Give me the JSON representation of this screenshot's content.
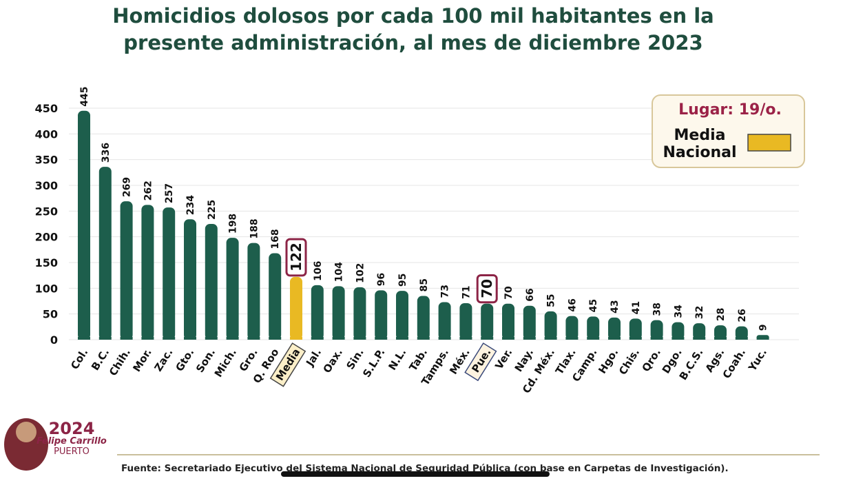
{
  "chart_data": {
    "type": "bar",
    "title": "Homicidios dolosos por cada 100 mil habitantes en la presente administración, al mes de diciembre 2023",
    "title_lines": [
      "Homicidios dolosos por cada 100 mil habitantes en la",
      "presente administración, al mes de diciembre 2023"
    ],
    "categories": [
      "Col.",
      "B.C.",
      "Chih.",
      "Mor.",
      "Zac.",
      "Gto.",
      "Son.",
      "Mich.",
      "Gro.",
      "Q. Roo",
      "Media",
      "Jal.",
      "Oax.",
      "Sin.",
      "S.L.P.",
      "N.L.",
      "Tab.",
      "Tamps.",
      "Méx.",
      "Pue.",
      "Ver.",
      "Nay.",
      "Cd. Méx.",
      "Tlax.",
      "Camp.",
      "Hgo.",
      "Chis.",
      "Qro.",
      "Dgo.",
      "B.C.S.",
      "Ags.",
      "Coah.",
      "Yuc."
    ],
    "values": [
      445,
      336,
      269,
      262,
      257,
      234,
      225,
      198,
      188,
      168,
      122,
      106,
      104,
      102,
      96,
      95,
      85,
      73,
      71,
      70,
      70,
      66,
      55,
      46,
      45,
      43,
      41,
      38,
      34,
      32,
      28,
      26,
      9
    ],
    "highlighted": [
      "Media",
      "Pue."
    ],
    "ylim": [
      0,
      450
    ],
    "yticks": [
      0,
      50,
      100,
      150,
      200,
      250,
      300,
      350,
      400,
      450
    ],
    "grid": true,
    "xlabel": "",
    "ylabel": "",
    "legend": {
      "placement": "top-right",
      "rank": "Lugar: 19/o.",
      "entry": [
        "Media",
        "Nacional"
      ]
    },
    "colors": {
      "bar": "#1d5e4c",
      "media": "#e9b923",
      "highlight_border": "#8c2446",
      "title": "#1f4d3e",
      "rank": "#9b2247"
    }
  },
  "footer": {
    "source": "Fuente:  Secretariado Ejecutivo del Sistema Nacional de Seguridad Pública (con base en Carpetas de Investigación)."
  },
  "logo": {
    "year": "2024",
    "name": "Felipe Carrillo",
    "name2": "PUERTO"
  }
}
